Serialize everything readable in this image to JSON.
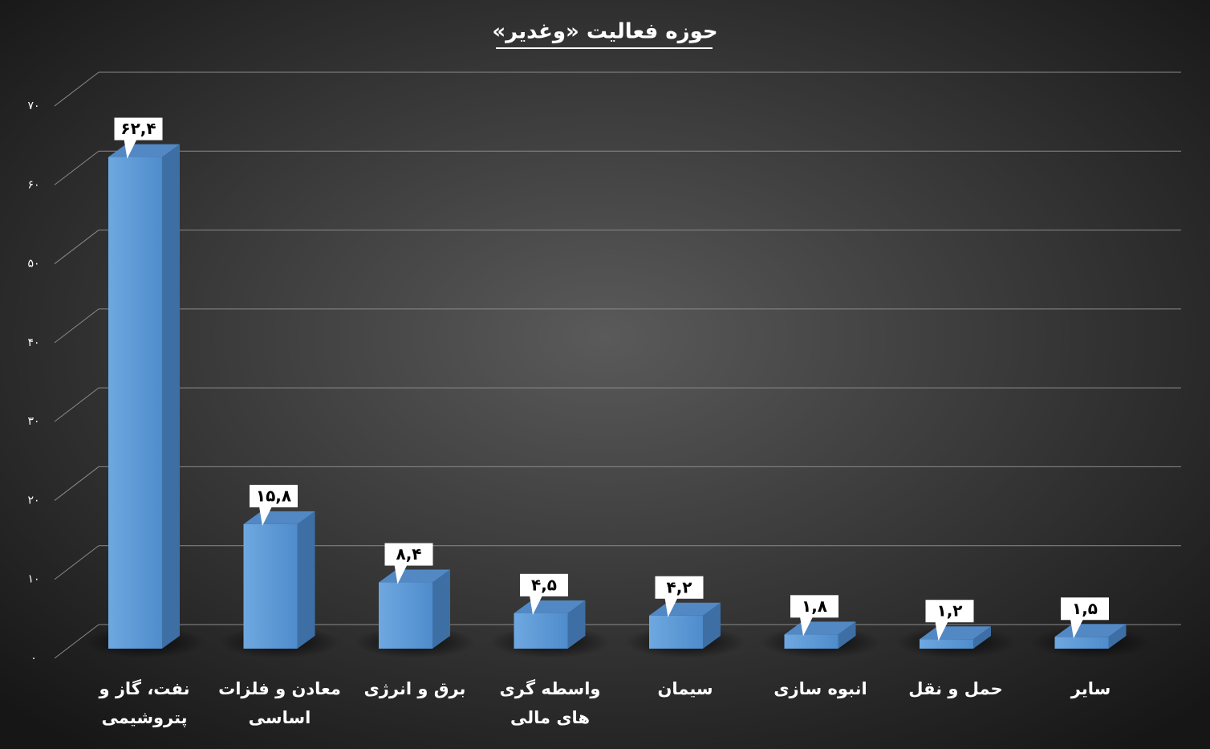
{
  "chart_data": {
    "type": "bar",
    "title": "حوزه فعالیت «وغدیر»",
    "categories": [
      "نفت، گاز و پتروشیمی",
      "معادن و فلزات اساسی",
      "برق و انرژی",
      "واسطه گری های مالی",
      "سیمان",
      "انبوه سازی",
      "حمل و نقل",
      "سایر"
    ],
    "values": [
      62.4,
      15.8,
      8.4,
      4.5,
      4.2,
      1.8,
      1.2,
      1.5
    ],
    "value_labels": [
      "۶۲,۴",
      "۱۵,۸",
      "۸,۴",
      "۴,۵",
      "۴,۲",
      "۱,۸",
      "۱,۲",
      "۱,۵"
    ],
    "color": "#5b9bd5",
    "ylim": [
      0,
      70
    ],
    "yticks": [
      {
        "value": 0,
        "label": "۰"
      },
      {
        "value": 10,
        "label": "۱۰"
      },
      {
        "value": 20,
        "label": "۲۰"
      },
      {
        "value": 30,
        "label": "۳۰"
      },
      {
        "value": 40,
        "label": "۴۰"
      },
      {
        "value": 50,
        "label": "۵۰"
      },
      {
        "value": 60,
        "label": "۶۰"
      },
      {
        "value": 70,
        "label": "۷۰"
      }
    ],
    "grid": true
  }
}
